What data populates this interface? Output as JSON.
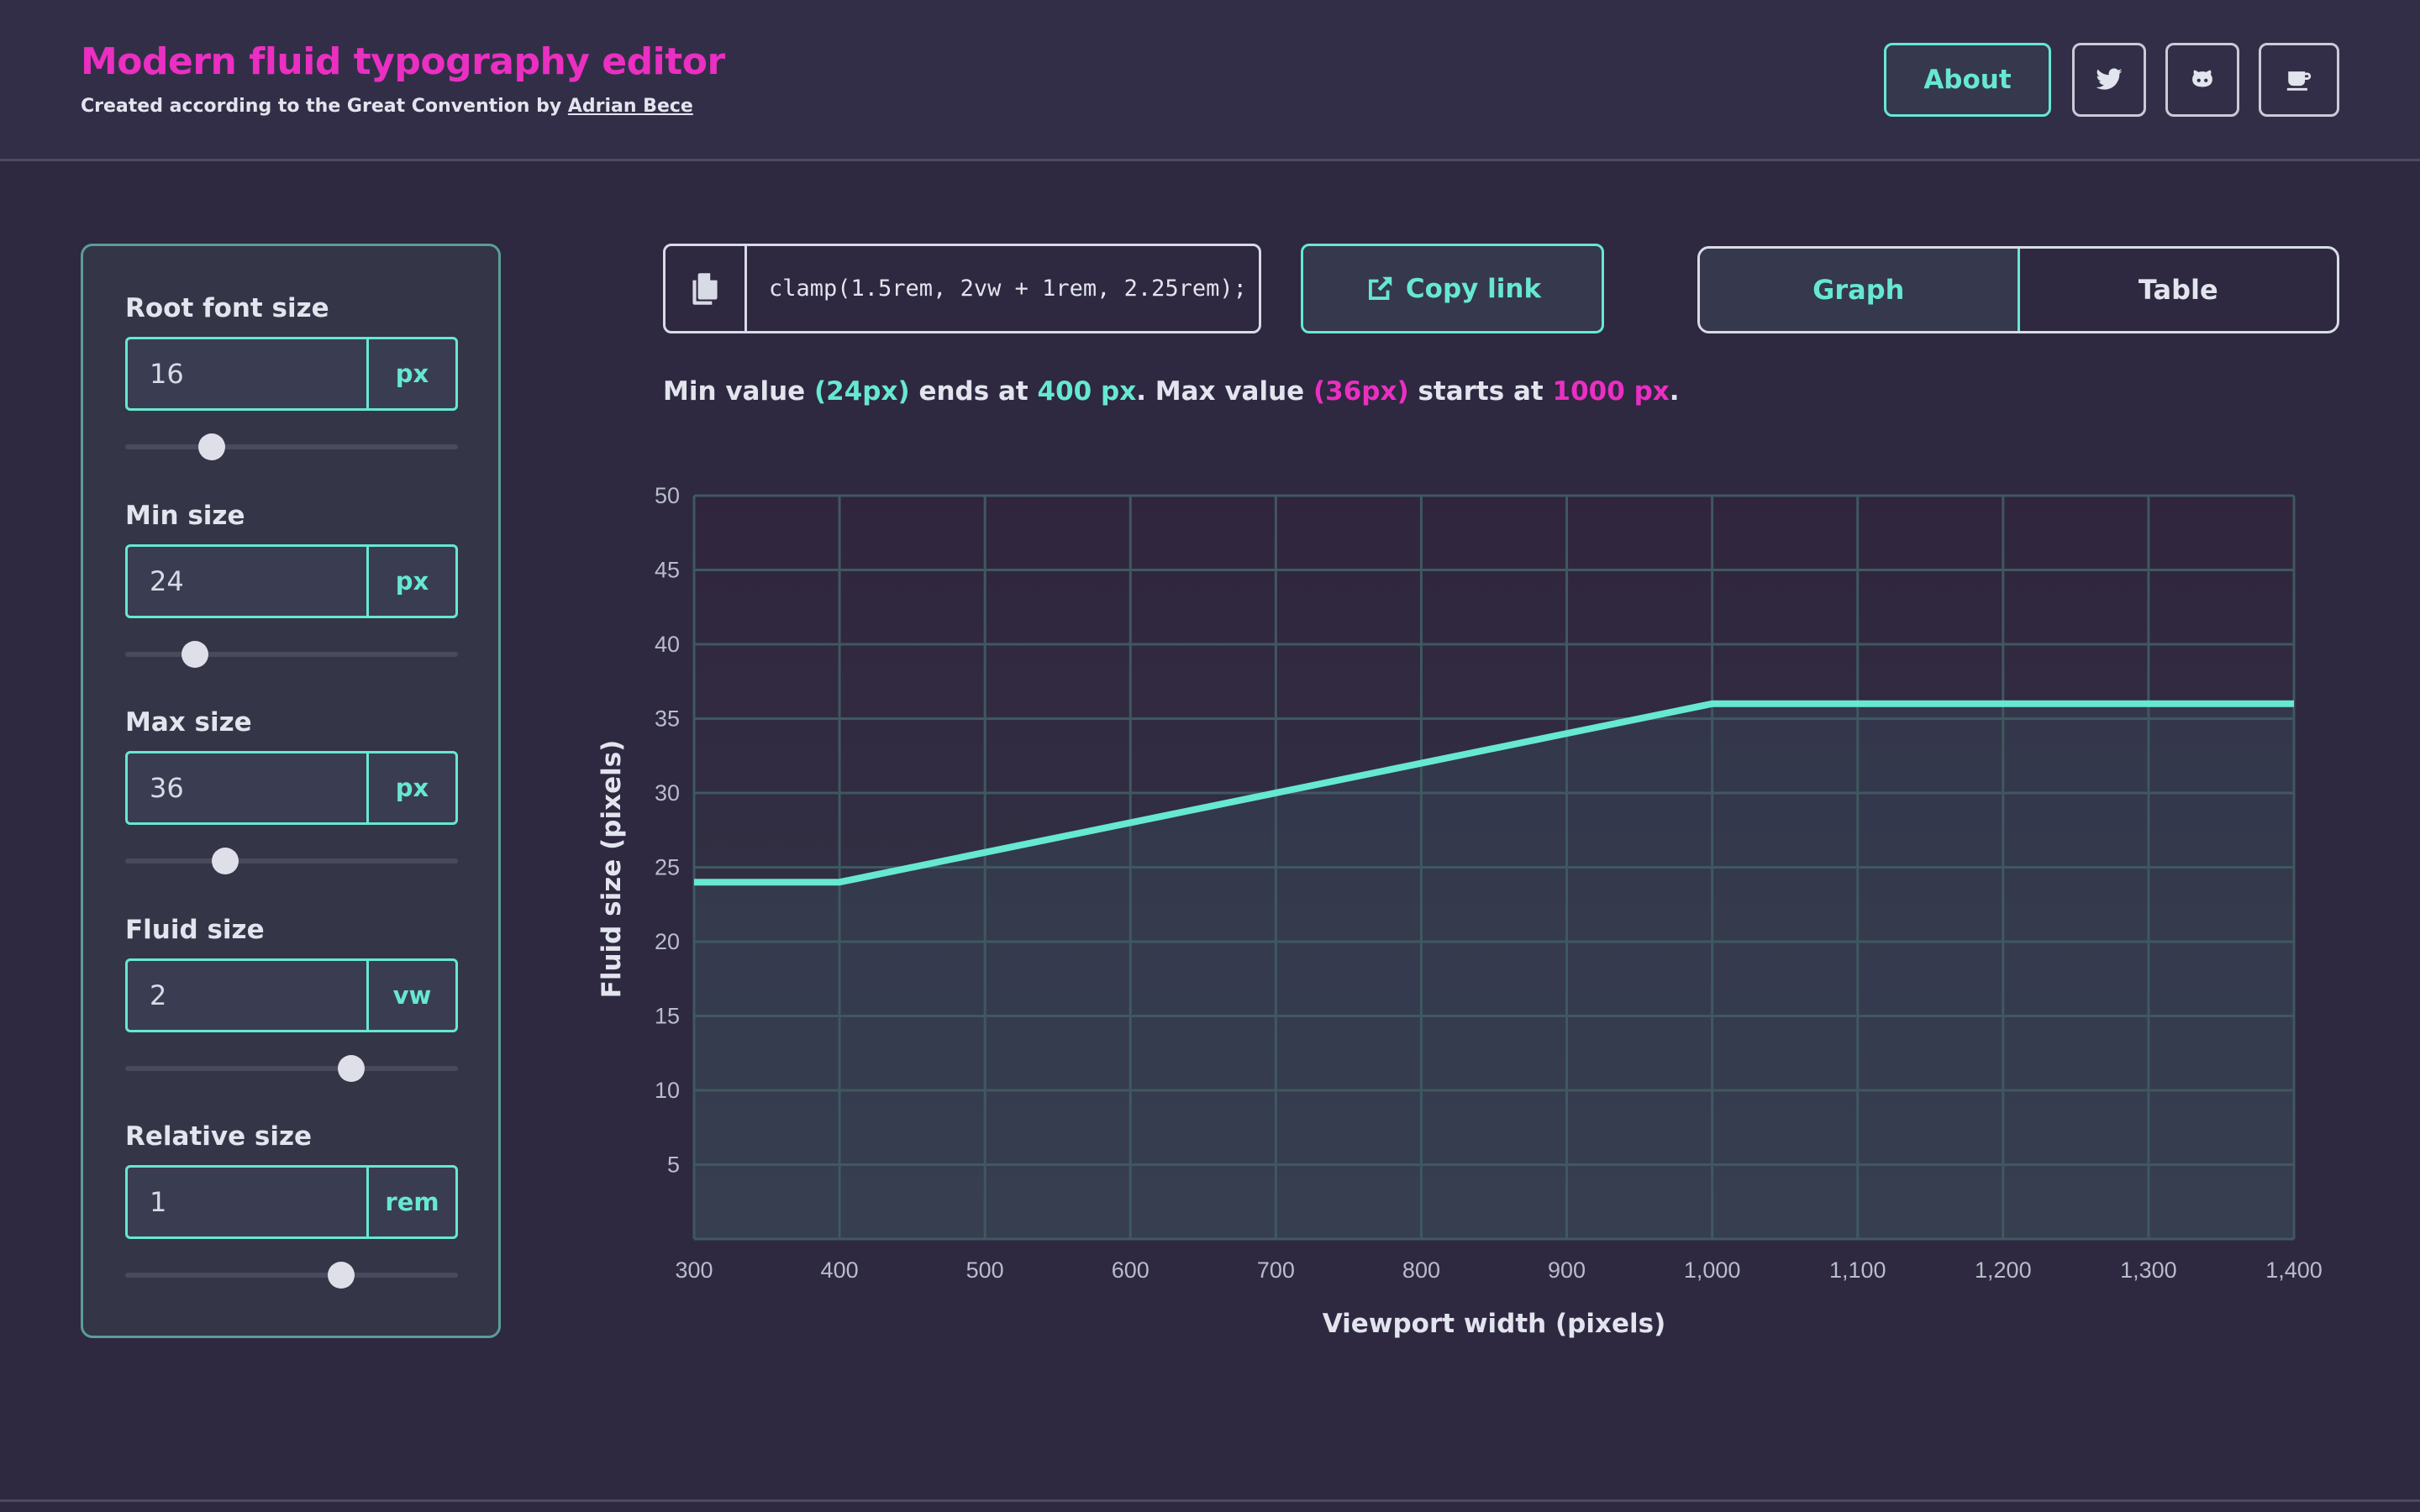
{
  "header": {
    "title": "Modern fluid typography editor",
    "subtitle_prefix": "Created according to the Great Convention by ",
    "author": "Adrian Bece",
    "about_label": "About",
    "icons": [
      "twitter-icon",
      "github-icon",
      "coffee-icon"
    ]
  },
  "panel": {
    "fields": [
      {
        "label": "Root font size",
        "value": "16",
        "unit": "px",
        "slider_fraction": 0.26
      },
      {
        "label": "Min size",
        "value": "24",
        "unit": "px",
        "slider_fraction": 0.21
      },
      {
        "label": "Max size",
        "value": "36",
        "unit": "px",
        "slider_fraction": 0.3
      },
      {
        "label": "Fluid size",
        "value": "2",
        "unit": "vw",
        "slider_fraction": 0.68
      },
      {
        "label": "Relative size",
        "value": "1",
        "unit": "rem",
        "slider_fraction": 0.65
      }
    ]
  },
  "toolbar": {
    "code": "clamp(1.5rem, 2vw + 1rem, 2.25rem);",
    "copy_link_label": "Copy link",
    "tabs": [
      "Graph",
      "Table"
    ],
    "active_tab": "Graph"
  },
  "summary": {
    "p1": "Min value ",
    "min_value": "(24px)",
    "p2": " ends at ",
    "min_end": "400 px",
    "p3": ". Max value ",
    "max_value": "(36px)",
    "p4": " starts at ",
    "max_start": "1000 px",
    "p5": "."
  },
  "colors": {
    "accent": "#66e8d2",
    "brand": "#ea2fc2",
    "background": "#2e2840"
  },
  "chart_data": {
    "type": "area",
    "xlabel": "Viewport width (pixels)",
    "ylabel": "Fluid size (pixels)",
    "xlim": [
      300,
      1400
    ],
    "ylim": [
      0,
      50
    ],
    "x_ticks": [
      "300",
      "400",
      "500",
      "600",
      "700",
      "800",
      "900",
      "1,000",
      "1,100",
      "1,200",
      "1,300",
      "1,400"
    ],
    "y_ticks": [
      "5",
      "10",
      "15",
      "20",
      "25",
      "30",
      "35",
      "40",
      "45",
      "50"
    ],
    "grid": true,
    "series": [
      {
        "x": [
          300,
          400,
          1000,
          1400
        ],
        "y": [
          24,
          24,
          36,
          36
        ]
      }
    ]
  }
}
